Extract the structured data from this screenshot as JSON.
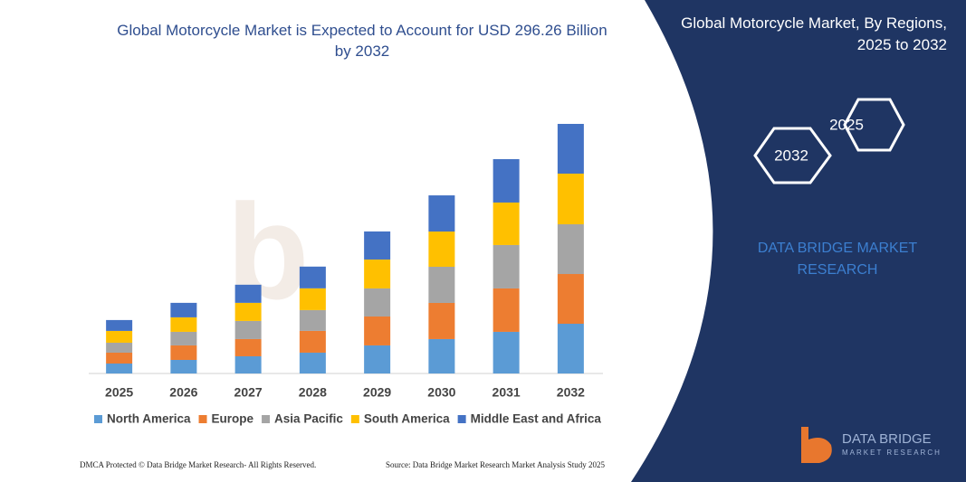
{
  "chart_data": {
    "type": "stacked_bar",
    "title": "Global Motorcycle Market is Expected to Account for USD 296.26 Billion by 2032",
    "categories": [
      "2025",
      "2026",
      "2027",
      "2028",
      "2029",
      "2030",
      "2031",
      "2032"
    ],
    "series": [
      {
        "name": "North America",
        "color": "#5b9bd5",
        "values": [
          11.8,
          16.1,
          20.4,
          24.7,
          33.3,
          40.8,
          49.4,
          59.0
        ]
      },
      {
        "name": "Europe",
        "color": "#ed7d31",
        "values": [
          12.9,
          17.2,
          20.4,
          25.8,
          34.3,
          42.9,
          51.5,
          59.0
        ]
      },
      {
        "name": "Asia Pacific",
        "color": "#a5a5a5",
        "values": [
          11.8,
          16.1,
          21.5,
          24.7,
          33.3,
          42.9,
          51.5,
          59.0
        ]
      },
      {
        "name": "South America",
        "color": "#ffc000",
        "values": [
          14.0,
          17.2,
          21.5,
          25.8,
          34.3,
          41.8,
          50.4,
          60.1
        ]
      },
      {
        "name": "Middle East and Africa",
        "color": "#4472c4",
        "values": [
          12.9,
          17.2,
          21.5,
          25.8,
          33.3,
          42.9,
          51.5,
          59.0
        ]
      }
    ],
    "legend": "bottom"
  },
  "panel": {
    "title": "Global Motorcycle Market, By Regions, 2025 to 2032",
    "hex_start": "2025",
    "hex_end": "2032",
    "brand": "DATA BRIDGE MARKET RESEARCH",
    "logo_name": "DATA BRIDGE",
    "logo_sub": "MARKET RESEARCH"
  },
  "footer": {
    "left": "DMCA Protected © Data Bridge Market Research- All Rights Reserved.",
    "right": "Source: Data Bridge Market Research Market Analysis Study 2025"
  }
}
